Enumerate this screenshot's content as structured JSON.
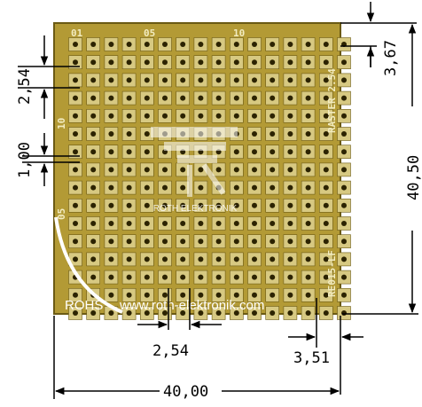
{
  "board": {
    "columns": 16,
    "rows": 16,
    "col_labels": [
      "01",
      "05",
      "10"
    ],
    "row_labels": [
      "10",
      "05"
    ],
    "raster_label": "RASTER 2.54",
    "part_label": "RE015-LF",
    "rohs_label": "ROHS",
    "url_label": "www.roth-elektronik.com",
    "logo_label": "ROTH ELEKTRONIK",
    "colors": {
      "substrate": "#b39a35",
      "substrate_edge": "#6b5a14",
      "pad": "#d7c982",
      "hole": "#2c2300",
      "silkscreen": "#efe7b6"
    }
  },
  "dimensions": {
    "pitch_left": "2,54",
    "hole_dia": "1,00",
    "top_offset": "3,67",
    "height": "40,50",
    "pitch_bottom": "2,54",
    "right_offset": "3,51",
    "width": "40,00"
  }
}
